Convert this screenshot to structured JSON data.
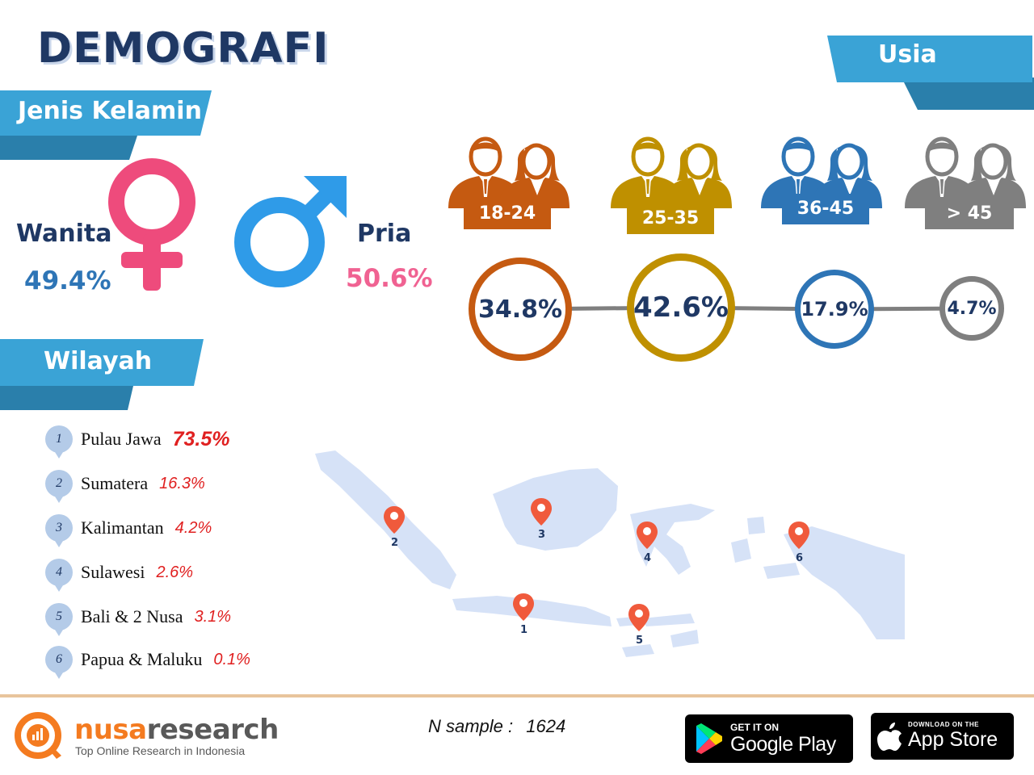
{
  "title": "DEMOGRAFI",
  "gender": {
    "header": "Jenis Kelamin",
    "female_label": "Wanita",
    "female_pct": "49.4%",
    "male_label": "Pria",
    "male_pct": "50.6%",
    "female_value": 49.4,
    "male_value": 50.6
  },
  "age": {
    "header": "Usia",
    "groups": [
      {
        "label": "18-24",
        "pct": "34.8%",
        "value": 34.8,
        "color": "#c55a11"
      },
      {
        "label": "25-35",
        "pct": "42.6%",
        "value": 42.6,
        "color": "#bf9000"
      },
      {
        "label": "36-45",
        "pct": "17.9%",
        "value": 17.9,
        "color": "#2e75b6"
      },
      {
        "label": "> 45",
        "pct": "4.7%",
        "value": 4.7,
        "color": "#7f7f7f"
      }
    ]
  },
  "region": {
    "header": "Wilayah",
    "items": [
      {
        "num": "1",
        "name": "Pulau Jawa",
        "pct": "73.5%"
      },
      {
        "num": "2",
        "name": "Sumatera",
        "pct": "16.3%"
      },
      {
        "num": "3",
        "name": "Kalimantan",
        "pct": "4.2%"
      },
      {
        "num": "4",
        "name": "Sulawesi",
        "pct": "2.6%"
      },
      {
        "num": "5",
        "name": "Bali & 2 Nusa",
        "pct": "3.1%"
      },
      {
        "num": "6",
        "name": "Papua & Maluku",
        "pct": "0.1%"
      }
    ],
    "map_pins": [
      "1",
      "2",
      "3",
      "4",
      "5",
      "6"
    ]
  },
  "footer": {
    "brand_part1": "nusa",
    "brand_part2": "research",
    "tagline": "Top Online Research in Indonesia",
    "sample_label": "N sample :",
    "sample_value": "1624",
    "google_small": "GET IT ON",
    "google_big": "Google Play",
    "apple_small": "DOWNLOAD ON THE",
    "apple_big": "App Store"
  },
  "colors": {
    "ribbon": "#3399cc",
    "navy": "#1f3864",
    "female": "#ee4b7c",
    "male": "#2f9be8",
    "female_pct_color": "#2e75b6",
    "male_pct_color": "#f06292",
    "region_pct": "#e02020",
    "divider": "#e8c49c",
    "brand_orange": "#f47b20"
  },
  "icons": [
    "female-symbol-icon",
    "male-symbol-icon",
    "people-icon",
    "map-pin-icon",
    "google-play-icon",
    "apple-icon"
  ]
}
